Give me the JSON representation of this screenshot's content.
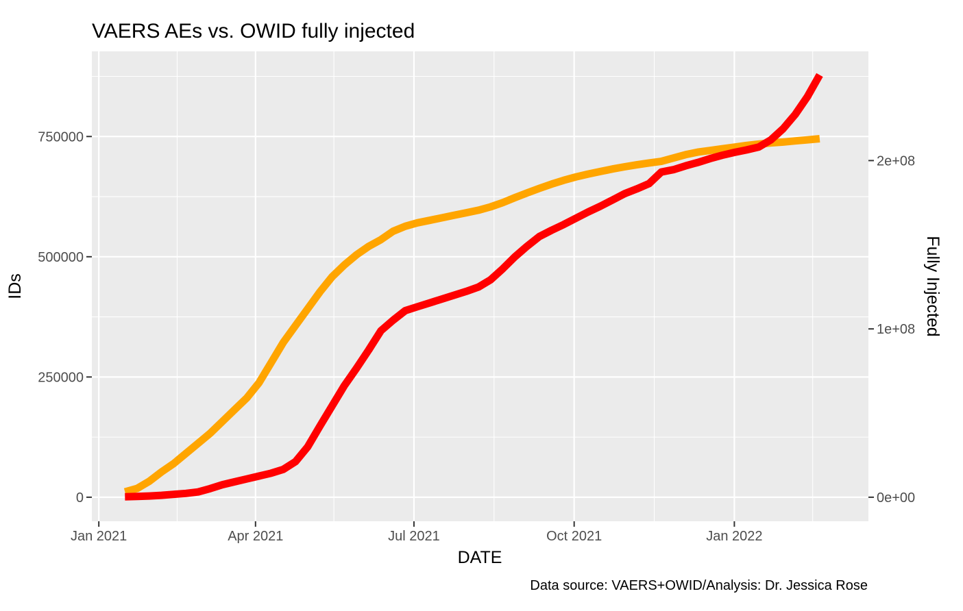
{
  "chart_data": {
    "type": "line",
    "title": "VAERS AEs vs. OWID fully injected",
    "xlabel": "DATE",
    "ylabel": "IDs",
    "y2label": "Fully Injected",
    "caption": "Data source: VAERS+OWID/Analysis: Dr. Jessica Rose",
    "x_range": [
      "2020-12-28",
      "2022-03-19"
    ],
    "ylim": [
      -50000,
      927000
    ],
    "y2lim": [
      -14283000,
      264870000
    ],
    "x_ticks": [
      {
        "date": "2021-01-01",
        "label": "Jan 2021"
      },
      {
        "date": "2021-04-01",
        "label": "Apr 2021"
      },
      {
        "date": "2021-07-01",
        "label": "Jul 2021"
      },
      {
        "date": "2021-10-01",
        "label": "Oct 2021"
      },
      {
        "date": "2022-01-01",
        "label": "Jan 2022"
      }
    ],
    "x_minor_ticks": [
      "2021-02-15",
      "2021-05-16",
      "2021-08-16",
      "2021-11-16",
      "2022-02-15"
    ],
    "y_ticks": [
      {
        "value": 0,
        "label": "0"
      },
      {
        "value": 250000,
        "label": "250000"
      },
      {
        "value": 500000,
        "label": "500000"
      },
      {
        "value": 750000,
        "label": "750000"
      }
    ],
    "y_minor_ticks": [
      125000,
      375000,
      625000,
      875000
    ],
    "y2_ticks": [
      {
        "value": 0,
        "label": "0e+00"
      },
      {
        "value": 100000000,
        "label": "1e+08"
      },
      {
        "value": 200000000,
        "label": "2e+08"
      }
    ],
    "grid": true,
    "series": [
      {
        "axis": "right",
        "color": "#FFA500",
        "points": [
          [
            "2021-01-16",
            3200000
          ],
          [
            "2021-01-23",
            5200000
          ],
          [
            "2021-01-30",
            9500000
          ],
          [
            "2021-02-06",
            15000000
          ],
          [
            "2021-02-13",
            20000000
          ],
          [
            "2021-02-20",
            26000000
          ],
          [
            "2021-02-27",
            32000000
          ],
          [
            "2021-03-06",
            38000000
          ],
          [
            "2021-03-13",
            45000000
          ],
          [
            "2021-03-20",
            52000000
          ],
          [
            "2021-03-27",
            59000000
          ],
          [
            "2021-04-03",
            68000000
          ],
          [
            "2021-04-10",
            80000000
          ],
          [
            "2021-04-17",
            92000000
          ],
          [
            "2021-04-24",
            102000000
          ],
          [
            "2021-05-01",
            112000000
          ],
          [
            "2021-05-08",
            122000000
          ],
          [
            "2021-05-15",
            131000000
          ],
          [
            "2021-05-22",
            138000000
          ],
          [
            "2021-05-29",
            144000000
          ],
          [
            "2021-06-05",
            149000000
          ],
          [
            "2021-06-12",
            153000000
          ],
          [
            "2021-06-19",
            158000000
          ],
          [
            "2021-06-26",
            161000000
          ],
          [
            "2021-07-03",
            163000000
          ],
          [
            "2021-07-10",
            164500000
          ],
          [
            "2021-07-17",
            166000000
          ],
          [
            "2021-07-24",
            167500000
          ],
          [
            "2021-07-31",
            169000000
          ],
          [
            "2021-08-07",
            170500000
          ],
          [
            "2021-08-14",
            172500000
          ],
          [
            "2021-08-21",
            175000000
          ],
          [
            "2021-08-28",
            178000000
          ],
          [
            "2021-09-04",
            180800000
          ],
          [
            "2021-09-11",
            183500000
          ],
          [
            "2021-09-18",
            186000000
          ],
          [
            "2021-09-25",
            188300000
          ],
          [
            "2021-10-02",
            190300000
          ],
          [
            "2021-10-09",
            192000000
          ],
          [
            "2021-10-16",
            193500000
          ],
          [
            "2021-10-23",
            195000000
          ],
          [
            "2021-10-30",
            196300000
          ],
          [
            "2021-11-06",
            197500000
          ],
          [
            "2021-11-13",
            198600000
          ],
          [
            "2021-11-20",
            199500000
          ],
          [
            "2021-11-27",
            201500000
          ],
          [
            "2021-12-04",
            203500000
          ],
          [
            "2021-12-11",
            205000000
          ],
          [
            "2021-12-18",
            206000000
          ],
          [
            "2021-12-25",
            207000000
          ],
          [
            "2022-01-01",
            208000000
          ],
          [
            "2022-01-08",
            209000000
          ],
          [
            "2022-01-15",
            209800000
          ],
          [
            "2022-01-22",
            210500000
          ],
          [
            "2022-01-29",
            211000000
          ],
          [
            "2022-02-05",
            211700000
          ],
          [
            "2022-02-12",
            212300000
          ],
          [
            "2022-02-19",
            213000000
          ]
        ]
      },
      {
        "axis": "left",
        "color": "#FF0000",
        "points": [
          [
            "2021-01-16",
            1000
          ],
          [
            "2021-01-23",
            1500
          ],
          [
            "2021-01-30",
            2500
          ],
          [
            "2021-02-06",
            4000
          ],
          [
            "2021-02-13",
            6000
          ],
          [
            "2021-02-20",
            8000
          ],
          [
            "2021-02-27",
            11000
          ],
          [
            "2021-03-06",
            18000
          ],
          [
            "2021-03-13",
            26000
          ],
          [
            "2021-03-20",
            32000
          ],
          [
            "2021-03-27",
            38000
          ],
          [
            "2021-04-03",
            44000
          ],
          [
            "2021-04-10",
            50000
          ],
          [
            "2021-04-17",
            58000
          ],
          [
            "2021-04-24",
            74000
          ],
          [
            "2021-05-01",
            105000
          ],
          [
            "2021-05-08",
            148000
          ],
          [
            "2021-05-15",
            190000
          ],
          [
            "2021-05-22",
            232000
          ],
          [
            "2021-05-29",
            268000
          ],
          [
            "2021-06-05",
            306000
          ],
          [
            "2021-06-12",
            346000
          ],
          [
            "2021-06-19",
            368000
          ],
          [
            "2021-06-26",
            388000
          ],
          [
            "2021-07-03",
            396000
          ],
          [
            "2021-07-10",
            404000
          ],
          [
            "2021-07-17",
            412000
          ],
          [
            "2021-07-24",
            420000
          ],
          [
            "2021-07-31",
            428000
          ],
          [
            "2021-08-07",
            437000
          ],
          [
            "2021-08-14",
            452000
          ],
          [
            "2021-08-21",
            475000
          ],
          [
            "2021-08-28",
            500000
          ],
          [
            "2021-09-04",
            522000
          ],
          [
            "2021-09-11",
            542000
          ],
          [
            "2021-09-18",
            555000
          ],
          [
            "2021-09-25",
            567000
          ],
          [
            "2021-10-02",
            580000
          ],
          [
            "2021-10-09",
            593000
          ],
          [
            "2021-10-16",
            605000
          ],
          [
            "2021-10-23",
            618000
          ],
          [
            "2021-10-30",
            631000
          ],
          [
            "2021-11-06",
            641000
          ],
          [
            "2021-11-13",
            652000
          ],
          [
            "2021-11-20",
            676000
          ],
          [
            "2021-11-27",
            681000
          ],
          [
            "2021-12-04",
            689000
          ],
          [
            "2021-12-11",
            696000
          ],
          [
            "2021-12-18",
            704000
          ],
          [
            "2021-12-25",
            711000
          ],
          [
            "2022-01-01",
            717000
          ],
          [
            "2022-01-08",
            722000
          ],
          [
            "2022-01-15",
            728000
          ],
          [
            "2022-01-22",
            743000
          ],
          [
            "2022-01-29",
            766000
          ],
          [
            "2022-02-05",
            796000
          ],
          [
            "2022-02-12",
            833000
          ],
          [
            "2022-02-19",
            878000
          ]
        ]
      }
    ]
  }
}
